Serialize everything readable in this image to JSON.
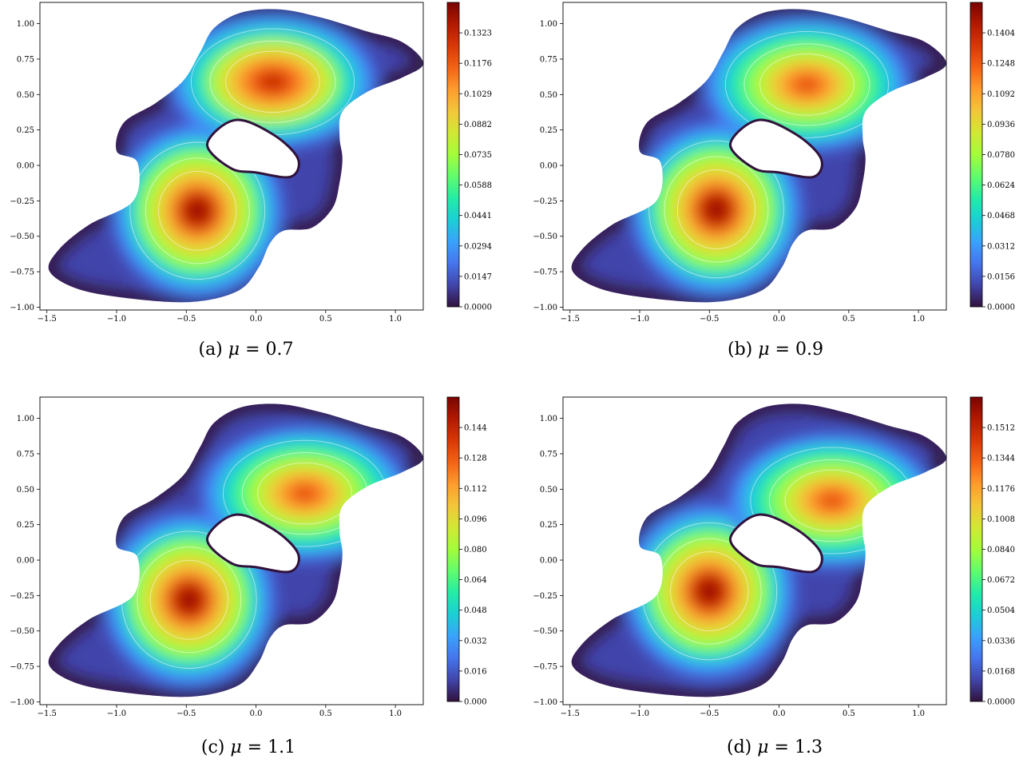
{
  "chart_data": [
    {
      "type": "heatmap",
      "caption_label": "(a)",
      "mu_symbol": "μ",
      "mu_value": "0.7",
      "xlim": [
        -1.55,
        1.2
      ],
      "ylim": [
        -1.02,
        1.15
      ],
      "xticks": [
        -1.5,
        -1.0,
        -0.5,
        0.0,
        0.5,
        1.0
      ],
      "xtick_labels": [
        "−1.5",
        "−1.0",
        "−0.5",
        "0.0",
        "0.5",
        "1.0"
      ],
      "yticks": [
        -1.0,
        -0.75,
        -0.5,
        -0.25,
        0.0,
        0.25,
        0.5,
        0.75,
        1.0
      ],
      "ytick_labels": [
        "−1.00",
        "−0.75",
        "−0.50",
        "−0.25",
        "0.00",
        "0.25",
        "0.50",
        "0.75",
        "1.00"
      ],
      "colorbar": {
        "min": 0.0,
        "max": 0.147,
        "ticks": [
          0.0,
          0.0147,
          0.0294,
          0.0441,
          0.0588,
          0.0735,
          0.0882,
          0.1029,
          0.1176,
          0.1323
        ],
        "tick_labels": [
          "0.0000",
          "0.0147",
          "0.0294",
          "0.0441",
          "0.0588",
          "0.0735",
          "0.0882",
          "0.1029",
          "0.1176",
          "0.1323"
        ]
      },
      "modes": [
        {
          "x": -0.42,
          "y": -0.32,
          "value": 0.147
        },
        {
          "x": 0.12,
          "y": 0.59,
          "value": 0.138
        }
      ]
    },
    {
      "type": "heatmap",
      "caption_label": "(b)",
      "mu_symbol": "μ",
      "mu_value": "0.9",
      "xlim": [
        -1.55,
        1.2
      ],
      "ylim": [
        -1.02,
        1.15
      ],
      "xticks": [
        -1.5,
        -1.0,
        -0.5,
        0.0,
        0.5,
        1.0
      ],
      "xtick_labels": [
        "−1.5",
        "−1.0",
        "−0.5",
        "0.0",
        "0.5",
        "1.0"
      ],
      "yticks": [
        -1.0,
        -0.75,
        -0.5,
        -0.25,
        0.0,
        0.25,
        0.5,
        0.75,
        1.0
      ],
      "ytick_labels": [
        "−1.00",
        "−0.75",
        "−0.50",
        "−0.25",
        "0.00",
        "0.25",
        "0.50",
        "0.75",
        "1.00"
      ],
      "colorbar": {
        "min": 0.0,
        "max": 0.156,
        "ticks": [
          0.0,
          0.0156,
          0.0312,
          0.0468,
          0.0624,
          0.078,
          0.0936,
          0.1092,
          0.1248,
          0.1404
        ],
        "tick_labels": [
          "0.0000",
          "0.0156",
          "0.0312",
          "0.0468",
          "0.0624",
          "0.0780",
          "0.0936",
          "0.1092",
          "0.1248",
          "0.1404"
        ]
      },
      "modes": [
        {
          "x": -0.45,
          "y": -0.31,
          "value": 0.156
        },
        {
          "x": 0.2,
          "y": 0.57,
          "value": 0.135
        }
      ]
    },
    {
      "type": "heatmap",
      "caption_label": "(c)",
      "mu_symbol": "μ",
      "mu_value": "1.1",
      "xlim": [
        -1.55,
        1.2
      ],
      "ylim": [
        -1.02,
        1.15
      ],
      "xticks": [
        -1.5,
        -1.0,
        -0.5,
        0.0,
        0.5,
        1.0
      ],
      "xtick_labels": [
        "−1.5",
        "−1.0",
        "−0.5",
        "0.0",
        "0.5",
        "1.0"
      ],
      "yticks": [
        -1.0,
        -0.75,
        -0.5,
        -0.25,
        0.0,
        0.25,
        0.5,
        0.75,
        1.0
      ],
      "ytick_labels": [
        "−1.00",
        "−0.75",
        "−0.50",
        "−0.25",
        "0.00",
        "0.25",
        "0.50",
        "0.75",
        "1.00"
      ],
      "colorbar": {
        "min": 0.0,
        "max": 0.16,
        "ticks": [
          0.0,
          0.016,
          0.032,
          0.048,
          0.064,
          0.08,
          0.096,
          0.112,
          0.128,
          0.144
        ],
        "tick_labels": [
          "0.000",
          "0.016",
          "0.032",
          "0.048",
          "0.064",
          "0.080",
          "0.096",
          "0.112",
          "0.128",
          "0.144"
        ]
      },
      "modes": [
        {
          "x": -0.48,
          "y": -0.28,
          "value": 0.16
        },
        {
          "x": 0.35,
          "y": 0.47,
          "value": 0.135
        }
      ]
    },
    {
      "type": "heatmap",
      "caption_label": "(d)",
      "mu_symbol": "μ",
      "mu_value": "1.3",
      "xlim": [
        -1.55,
        1.2
      ],
      "ylim": [
        -1.02,
        1.15
      ],
      "xticks": [
        -1.5,
        -1.0,
        -0.5,
        0.0,
        0.5,
        1.0
      ],
      "xtick_labels": [
        "−1.5",
        "−1.0",
        "−0.5",
        "0.0",
        "0.5",
        "1.0"
      ],
      "yticks": [
        -1.0,
        -0.75,
        -0.5,
        -0.25,
        0.0,
        0.25,
        0.5,
        0.75,
        1.0
      ],
      "ytick_labels": [
        "−1.00",
        "−0.75",
        "−0.50",
        "−0.25",
        "0.00",
        "0.25",
        "0.50",
        "0.75",
        "1.00"
      ],
      "colorbar": {
        "min": 0.0,
        "max": 0.168,
        "ticks": [
          0.0,
          0.0168,
          0.0336,
          0.0504,
          0.0672,
          0.084,
          0.1008,
          0.1176,
          0.1344,
          0.1512
        ],
        "tick_labels": [
          "0.0000",
          "0.0168",
          "0.0336",
          "0.0504",
          "0.0672",
          "0.0840",
          "0.1008",
          "0.1176",
          "0.1344",
          "0.1512"
        ]
      },
      "modes": [
        {
          "x": -0.5,
          "y": -0.22,
          "value": 0.168
        },
        {
          "x": 0.38,
          "y": 0.42,
          "value": 0.135
        }
      ]
    }
  ],
  "colormap": [
    "#30123b",
    "#4145ab",
    "#4675ed",
    "#39a2fc",
    "#1bcfd4",
    "#24eca6",
    "#61fc6c",
    "#a4fc3b",
    "#d1e834",
    "#f3c63a",
    "#fe9b2d",
    "#f36315",
    "#d93806",
    "#b11901",
    "#7a0402"
  ]
}
